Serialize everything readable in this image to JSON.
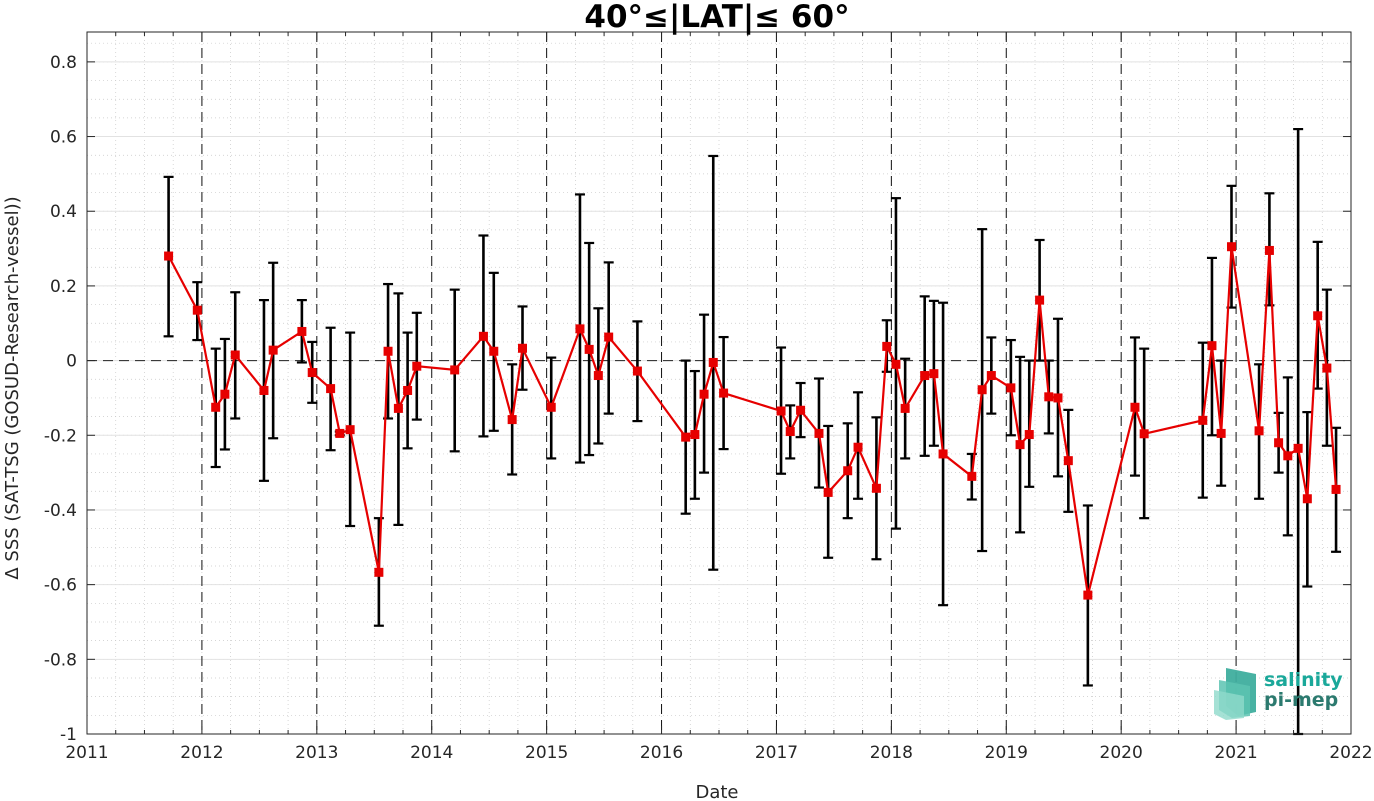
{
  "chart_data": {
    "type": "line",
    "title": "40°≤|LAT|≤ 60°",
    "xlabel": "Date",
    "ylabel": "Δ SSS (SAT-TSG (GOSUD-Research-vessel))",
    "xlim": [
      2011,
      2022
    ],
    "ylim": [
      -1,
      0.88
    ],
    "x_ticks": [
      "2011",
      "2012",
      "2013",
      "2014",
      "2015",
      "2016",
      "2017",
      "2018",
      "2019",
      "2020",
      "2021",
      "2022"
    ],
    "y_ticks": [
      "0.8",
      "0.6",
      "0.4",
      "0.2",
      "0",
      "-0.2",
      "-0.4",
      "-0.6",
      "-0.8",
      "-1"
    ],
    "grid": true,
    "zero_line": "dashed",
    "year_lines": "dashed",
    "colors": {
      "series": "#e60000",
      "errorbar": "#000000"
    },
    "marker": "square",
    "series": [
      {
        "x": [
          2011.71,
          2011.96,
          2012.12,
          2012.2,
          2012.29,
          2012.54,
          2012.62,
          2012.87,
          2012.96,
          2013.12,
          2013.2,
          2013.29,
          2013.54,
          2013.62,
          2013.71,
          2013.79,
          2013.87,
          2014.2,
          2014.45,
          2014.54,
          2014.7,
          2014.79,
          2015.04,
          2015.29,
          2015.37,
          2015.45,
          2015.54,
          2015.79,
          2016.21,
          2016.29,
          2016.37,
          2016.45,
          2016.54,
          2017.04,
          2017.12,
          2017.21,
          2017.37,
          2017.45,
          2017.62,
          2017.71,
          2017.87,
          2017.96,
          2018.04,
          2018.12,
          2018.29,
          2018.37,
          2018.45,
          2018.7,
          2018.79,
          2018.87,
          2019.04,
          2019.12,
          2019.2,
          2019.29,
          2019.37,
          2019.45,
          2019.54,
          2019.71,
          2020.12,
          2020.2,
          2020.71,
          2020.79,
          2020.87,
          2020.96,
          2021.2,
          2021.29,
          2021.37,
          2021.45,
          2021.54,
          2021.62,
          2021.71,
          2021.79,
          2021.87
        ],
        "y": [
          0.28,
          0.135,
          -0.125,
          -0.09,
          0.015,
          -0.08,
          0.028,
          0.078,
          -0.032,
          -0.075,
          -0.195,
          -0.185,
          -0.567,
          0.025,
          -0.128,
          -0.08,
          -0.015,
          -0.025,
          0.065,
          0.025,
          -0.158,
          0.033,
          -0.125,
          0.085,
          0.03,
          -0.04,
          0.063,
          -0.028,
          -0.205,
          -0.198,
          -0.09,
          -0.005,
          -0.087,
          -0.135,
          -0.19,
          -0.133,
          -0.195,
          -0.353,
          -0.295,
          -0.232,
          -0.342,
          0.038,
          -0.01,
          -0.128,
          -0.04,
          -0.035,
          -0.25,
          -0.31,
          -0.078,
          -0.04,
          -0.073,
          -0.225,
          -0.198,
          0.162,
          -0.097,
          -0.1,
          -0.268,
          -0.628,
          -0.125,
          -0.196,
          -0.16,
          0.04,
          -0.195,
          0.305,
          -0.188,
          0.295,
          -0.22,
          -0.255,
          -0.235,
          -0.37,
          0.12,
          -0.02,
          -0.345
        ],
        "err_low": [
          0.065,
          0.055,
          -0.285,
          -0.238,
          -0.155,
          -0.322,
          -0.208,
          -0.005,
          -0.113,
          -0.24,
          -0.2,
          -0.443,
          -0.71,
          -0.155,
          -0.44,
          -0.235,
          -0.158,
          -0.243,
          -0.203,
          -0.188,
          -0.305,
          -0.078,
          -0.262,
          -0.273,
          -0.253,
          -0.222,
          -0.142,
          -0.162,
          -0.41,
          -0.37,
          -0.3,
          -0.56,
          -0.237,
          -0.303,
          -0.262,
          -0.205,
          -0.34,
          -0.528,
          -0.422,
          -0.37,
          -0.532,
          -0.03,
          -0.45,
          -0.262,
          -0.255,
          -0.228,
          -0.655,
          -0.372,
          -0.51,
          -0.142,
          -0.2,
          -0.46,
          -0.338,
          0.0,
          -0.195,
          -0.31,
          -0.405,
          -0.87,
          -0.308,
          -0.422,
          -0.367,
          -0.2,
          -0.335,
          0.142,
          -0.37,
          0.148,
          -0.3,
          -0.468,
          -1.0,
          -0.605,
          -0.075,
          -0.228,
          -0.512
        ],
        "err_high": [
          0.492,
          0.21,
          0.032,
          0.058,
          0.183,
          0.162,
          0.262,
          0.162,
          0.05,
          0.088,
          -0.19,
          0.075,
          -0.422,
          0.205,
          0.18,
          0.075,
          0.128,
          0.19,
          0.335,
          0.235,
          -0.01,
          0.145,
          0.008,
          0.445,
          0.315,
          0.14,
          0.263,
          0.105,
          0.0,
          -0.028,
          0.123,
          0.548,
          0.063,
          0.035,
          -0.12,
          -0.06,
          -0.048,
          -0.175,
          -0.168,
          -0.085,
          -0.152,
          0.108,
          0.435,
          0.005,
          0.172,
          0.16,
          0.155,
          -0.25,
          0.352,
          0.062,
          0.055,
          0.01,
          0.0,
          0.323,
          0.0,
          0.112,
          -0.132,
          -0.388,
          0.062,
          0.032,
          0.048,
          0.275,
          0.0,
          0.468,
          -0.01,
          0.448,
          -0.14,
          -0.045,
          0.62,
          -0.138,
          0.318,
          0.19,
          -0.18
        ]
      }
    ]
  },
  "logo": {
    "line1": "salinity",
    "line2": "pi-mep",
    "color1": "#1aa89a",
    "color2": "#2c7a6f"
  }
}
